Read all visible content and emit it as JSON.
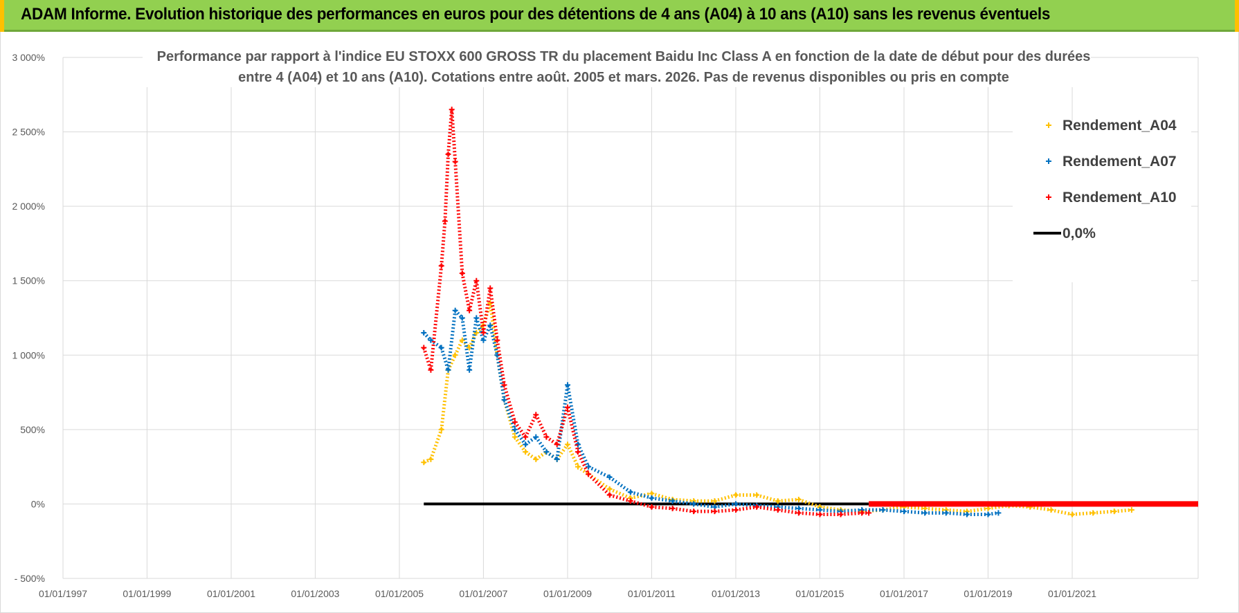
{
  "banner": {
    "title": "ADAM Informe. Evolution historique des performances en euros pour des détentions de 4 ans (A04) à 10 ans (A10) sans les revenus éventuels",
    "bg_color": "#92d050",
    "accent_color": "#ffc000"
  },
  "chart_data": {
    "type": "scatter",
    "title_lines": [
      "Performance par rapport à l'indice EU STOXX 600 GROSS TR  du placement Baidu Inc Class A en fonction de la date de début pour des durées",
      "entre 4 (A04) et 10 ans (A10). Cotations entre août. 2005 et mars. 2026. Pas de revenus disponibles ou pris en compte"
    ],
    "x_axis": {
      "type": "date",
      "range": [
        "1997-01-01",
        "2023-12-31"
      ],
      "tick_labels": [
        "01/01/1997",
        "01/01/1999",
        "01/01/2001",
        "01/01/2003",
        "01/01/2005",
        "01/01/2007",
        "01/01/2009",
        "01/01/2011",
        "01/01/2013",
        "01/01/2015",
        "01/01/2017",
        "01/01/2019",
        "01/01/2021"
      ],
      "gridlines": true
    },
    "y_axis": {
      "range": [
        -500,
        3000
      ],
      "unit": "%",
      "tick_values": [
        3000,
        2500,
        2000,
        1500,
        1000,
        500,
        0,
        -500
      ],
      "tick_labels": [
        "3 000%",
        "2 500%",
        "2 000%",
        "1 500%",
        "1 000%",
        "500%",
        "0%",
        "- 500%"
      ],
      "gridlines": true
    },
    "legend": {
      "position": "top-right"
    },
    "series": [
      {
        "name": "Rendement_A04",
        "color": "#ffc000",
        "marker": "plus",
        "x": [
          "2005-08-01",
          "2005-10-01",
          "2006-01-01",
          "2006-03-01",
          "2006-05-01",
          "2006-07-01",
          "2006-09-01",
          "2006-11-01",
          "2007-01-01",
          "2007-03-01",
          "2007-05-01",
          "2007-07-01",
          "2007-10-01",
          "2008-01-01",
          "2008-04-01",
          "2008-07-01",
          "2008-10-01",
          "2009-01-01",
          "2009-04-01",
          "2009-07-01",
          "2010-01-01",
          "2010-07-01",
          "2011-01-01",
          "2011-07-01",
          "2012-01-01",
          "2012-07-01",
          "2013-01-01",
          "2013-07-01",
          "2014-01-01",
          "2014-07-01",
          "2015-01-01",
          "2015-07-01",
          "2016-01-01",
          "2016-07-01",
          "2017-01-01",
          "2017-07-01",
          "2018-01-01",
          "2018-07-01",
          "2019-01-01",
          "2019-07-01",
          "2020-01-01",
          "2020-07-01",
          "2021-01-01",
          "2021-07-01",
          "2022-01-01",
          "2022-06-01"
        ],
        "values": [
          280,
          300,
          500,
          900,
          1000,
          1100,
          1050,
          1150,
          1200,
          1350,
          1000,
          700,
          450,
          350,
          300,
          350,
          300,
          400,
          250,
          200,
          100,
          40,
          70,
          30,
          20,
          20,
          60,
          60,
          20,
          30,
          -20,
          -40,
          -50,
          -40,
          -20,
          -30,
          -40,
          -50,
          -30,
          -10,
          -20,
          -40,
          -70,
          -60,
          -50,
          -40
        ]
      },
      {
        "name": "Rendement_A07",
        "color": "#0070c0",
        "marker": "plus",
        "x": [
          "2005-08-01",
          "2005-10-01",
          "2006-01-01",
          "2006-03-01",
          "2006-05-01",
          "2006-07-01",
          "2006-09-01",
          "2006-11-01",
          "2007-01-01",
          "2007-03-01",
          "2007-05-01",
          "2007-07-01",
          "2007-10-01",
          "2008-01-01",
          "2008-04-01",
          "2008-07-01",
          "2008-10-01",
          "2009-01-01",
          "2009-04-01",
          "2009-07-01",
          "2010-01-01",
          "2010-07-01",
          "2011-01-01",
          "2011-07-01",
          "2012-01-01",
          "2012-07-01",
          "2013-01-01",
          "2013-07-01",
          "2014-01-01",
          "2014-07-01",
          "2015-01-01",
          "2015-07-01",
          "2016-01-01",
          "2016-07-01",
          "2017-01-01",
          "2017-07-01",
          "2018-01-01",
          "2018-07-01",
          "2019-01-01",
          "2019-04-01"
        ],
        "values": [
          1150,
          1100,
          1050,
          900,
          1300,
          1250,
          900,
          1250,
          1100,
          1200,
          1000,
          700,
          500,
          400,
          450,
          350,
          300,
          800,
          400,
          250,
          180,
          80,
          40,
          20,
          0,
          -20,
          0,
          -10,
          -20,
          -30,
          -40,
          -50,
          -40,
          -40,
          -50,
          -60,
          -60,
          -70,
          -70,
          -60
        ]
      },
      {
        "name": "Rendement_A10",
        "color": "#ff0000",
        "marker": "plus",
        "x": [
          "2005-08-01",
          "2005-10-01",
          "2006-01-01",
          "2006-02-01",
          "2006-03-01",
          "2006-04-01",
          "2006-05-01",
          "2006-07-01",
          "2006-09-01",
          "2006-11-01",
          "2007-01-01",
          "2007-03-01",
          "2007-05-01",
          "2007-07-01",
          "2007-10-01",
          "2008-01-01",
          "2008-04-01",
          "2008-07-01",
          "2008-10-01",
          "2009-01-01",
          "2009-04-01",
          "2009-07-01",
          "2010-01-01",
          "2010-07-01",
          "2011-01-01",
          "2011-07-01",
          "2012-01-01",
          "2012-07-01",
          "2013-01-01",
          "2013-07-01",
          "2014-01-01",
          "2014-07-01",
          "2015-01-01",
          "2015-07-01",
          "2016-01-01",
          "2016-03-01"
        ],
        "values": [
          1050,
          900,
          1600,
          1900,
          2350,
          2650,
          2300,
          1550,
          1300,
          1500,
          1150,
          1450,
          1100,
          800,
          550,
          450,
          600,
          450,
          400,
          650,
          350,
          200,
          60,
          20,
          -20,
          -30,
          -50,
          -50,
          -40,
          -20,
          -40,
          -60,
          -70,
          -70,
          -60,
          -60
        ]
      },
      {
        "name": "Rendement_A10",
        "color": "#ff0000",
        "marker": "plus",
        "legend": false,
        "x": [
          "2016-03-01",
          "2023-12-31"
        ],
        "values": [
          0,
          0
        ]
      },
      {
        "name": "0,0%",
        "color": "#000000",
        "marker": "line",
        "x": [
          "2005-08-01",
          "2016-03-01"
        ],
        "values": [
          0,
          0
        ]
      }
    ]
  }
}
